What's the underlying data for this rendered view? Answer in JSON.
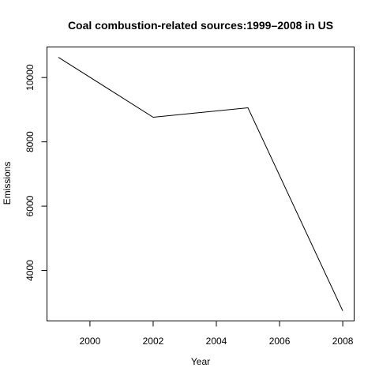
{
  "chart_data": {
    "type": "line",
    "title": "Coal combustion-related sources:1999–2008 in US",
    "xlabel": "Year",
    "ylabel": "Emissions",
    "x": [
      1999,
      2002,
      2005,
      2008
    ],
    "series": [
      {
        "name": "Emissions",
        "values": [
          10630,
          8765,
          9060,
          2745
        ]
      }
    ],
    "xlim": [
      1998.64,
      2008.36
    ],
    "ylim": [
      2430,
      10950
    ],
    "xticks": [
      2000,
      2002,
      2004,
      2006,
      2008
    ],
    "yticks": [
      4000,
      6000,
      8000,
      10000
    ],
    "grid": false,
    "legend": "none"
  }
}
